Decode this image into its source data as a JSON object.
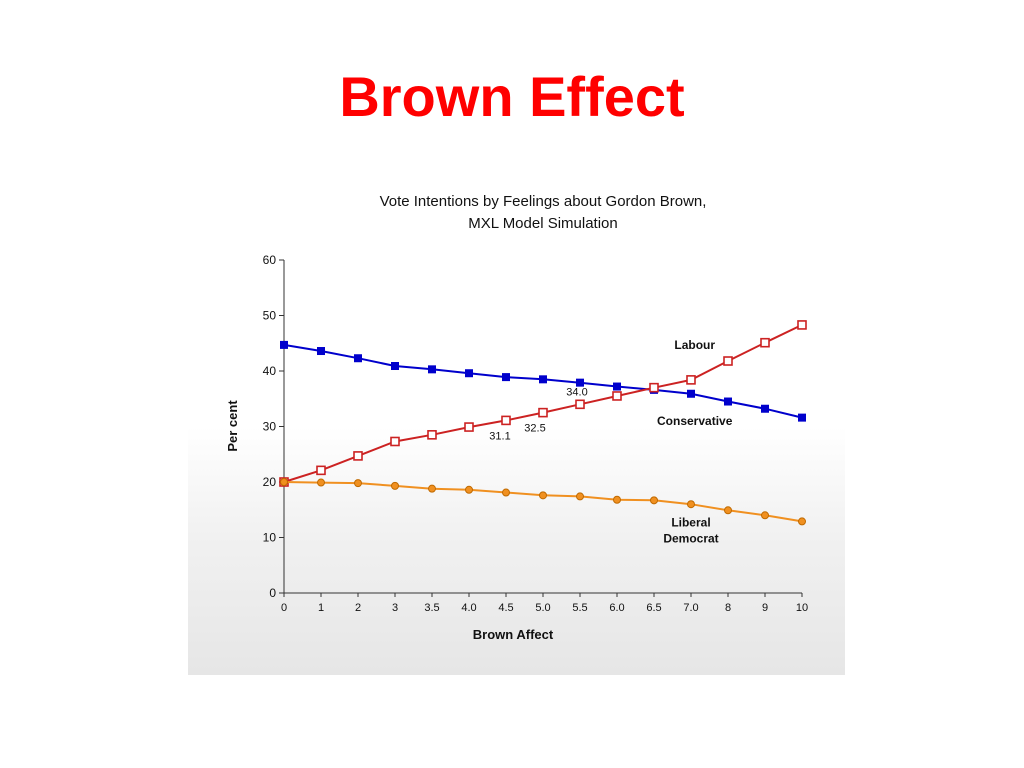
{
  "slide": {
    "title": "Brown Effect"
  },
  "chart_data": {
    "type": "line",
    "title": "Vote Intentions by Feelings about Gordon Brown,",
    "subtitle": "MXL Model Simulation",
    "xlabel": "Brown Affect",
    "ylabel": "Per cent",
    "ylim": [
      0,
      60
    ],
    "yticks": [
      "0",
      "10",
      "20",
      "30",
      "40",
      "50",
      "60"
    ],
    "categories": [
      "0",
      "1",
      "2",
      "3",
      "3.5",
      "4.0",
      "4.5",
      "5.0",
      "5.5",
      "6.0",
      "6.5",
      "7.0",
      "8",
      "9",
      "10"
    ],
    "grid": false,
    "legend": "none",
    "series": [
      {
        "name": "Conservative",
        "color": "#0000cc",
        "marker": "filled-square",
        "values": [
          44.7,
          43.6,
          42.3,
          40.9,
          40.3,
          39.6,
          38.9,
          38.5,
          37.9,
          37.2,
          36.6,
          35.9,
          34.5,
          33.2,
          31.6
        ]
      },
      {
        "name": "Labour",
        "color": "#cc2222",
        "marker": "hollow-square",
        "values": [
          20.0,
          22.1,
          24.7,
          27.3,
          28.5,
          29.9,
          31.1,
          32.5,
          34.0,
          35.5,
          37.0,
          38.4,
          41.8,
          45.1,
          48.3
        ]
      },
      {
        "name": "Liberal Democrat",
        "label_lines": [
          "Liberal",
          "Democrat"
        ],
        "color": "#f09020",
        "marker": "circle",
        "values": [
          20.0,
          19.9,
          19.8,
          19.3,
          18.8,
          18.6,
          18.1,
          17.6,
          17.4,
          16.8,
          16.7,
          16.0,
          14.9,
          14.0,
          12.9
        ]
      }
    ],
    "annotations": [
      {
        "text": "31.1",
        "series": "Labour",
        "index": 6
      },
      {
        "text": "32.5",
        "series": "Labour",
        "index": 7
      },
      {
        "text": "34.0",
        "series": "Labour",
        "index": 8
      }
    ],
    "series_labels": [
      {
        "series": "Labour",
        "lines": [
          "Labour"
        ],
        "at_index": 11.1,
        "at_value": 44.0
      },
      {
        "series": "Conservative",
        "lines": [
          "Conservative"
        ],
        "at_index": 11.1,
        "at_value": 30.3
      },
      {
        "series": "Liberal Democrat",
        "lines": [
          "Liberal",
          "Democrat"
        ],
        "at_index": 11.0,
        "at_value": 12.0
      }
    ]
  }
}
